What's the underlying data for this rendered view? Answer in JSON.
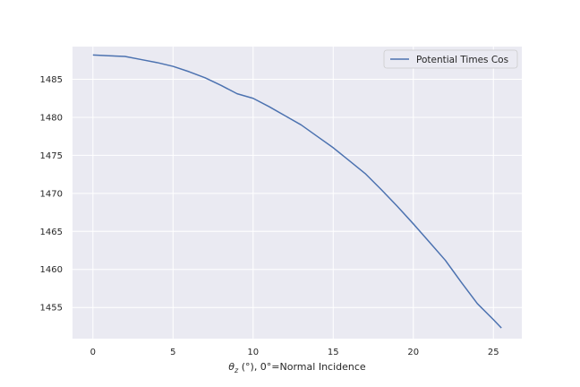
{
  "chart_data": {
    "type": "line",
    "title": "",
    "xlabel_prefix": "θ",
    "xlabel_sub": "z",
    "xlabel_rest": " (°), 0°=Normal Incidence",
    "ylabel": "",
    "xlim": [
      -1.275,
      26.775
    ],
    "ylim": [
      1450.9,
      1489.3
    ],
    "xticks": [
      0,
      5,
      10,
      15,
      20,
      25
    ],
    "yticks": [
      1455,
      1460,
      1465,
      1470,
      1475,
      1480,
      1485
    ],
    "grid": true,
    "legend_position": "upper right",
    "series": [
      {
        "name": "Potential Times Cos",
        "color": "#4c72b0",
        "x": [
          0,
          1,
          2,
          3,
          4,
          5,
          6,
          7,
          8,
          9,
          10,
          11,
          12,
          13,
          14,
          15,
          16,
          17,
          18,
          19,
          20,
          21,
          22,
          23,
          24,
          25,
          25.5
        ],
        "y": [
          1488.2,
          1488.1,
          1488.0,
          1487.6,
          1487.2,
          1486.7,
          1486.0,
          1485.2,
          1484.2,
          1483.1,
          1482.5,
          1481.4,
          1480.2,
          1479.0,
          1477.5,
          1476.0,
          1474.3,
          1472.6,
          1470.5,
          1468.3,
          1466.0,
          1463.6,
          1461.2,
          1458.3,
          1455.5,
          1453.4,
          1452.3
        ]
      }
    ]
  }
}
